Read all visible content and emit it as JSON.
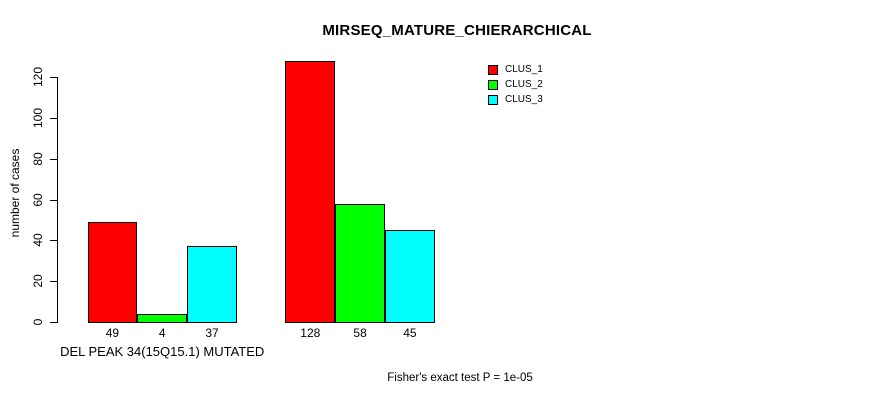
{
  "title": "MIRSEQ_MATURE_CHIERARCHICAL",
  "footnote": "Fisher's exact test P = 1e-05",
  "chart_data": {
    "type": "bar",
    "title": "MIRSEQ_MATURE_CHIERARCHICAL",
    "ylabel": "number of cases",
    "xlabel": "",
    "ylim": [
      0,
      128
    ],
    "yticks": [
      0,
      20,
      40,
      60,
      80,
      100,
      120
    ],
    "grid": false,
    "legend_position": "top-right",
    "series": [
      {
        "name": "CLUS_1",
        "color": "#FF0000",
        "values": [
          49,
          128
        ]
      },
      {
        "name": "CLUS_2",
        "color": "#00FF00",
        "values": [
          4,
          58
        ]
      },
      {
        "name": "CLUS_3",
        "color": "#00FFFF",
        "values": [
          37,
          45
        ]
      }
    ],
    "groups": [
      {
        "label": "DEL PEAK 34(15Q15.1) MUTATED",
        "values": [
          49,
          4,
          37
        ],
        "value_labels": [
          "49",
          "4",
          "37"
        ]
      },
      {
        "label": "",
        "values": [
          128,
          58,
          45
        ],
        "value_labels": [
          "128",
          "58",
          "45"
        ]
      }
    ],
    "bar_border_color": "#000000",
    "annotation": "Fisher's exact test P = 1e-05"
  }
}
